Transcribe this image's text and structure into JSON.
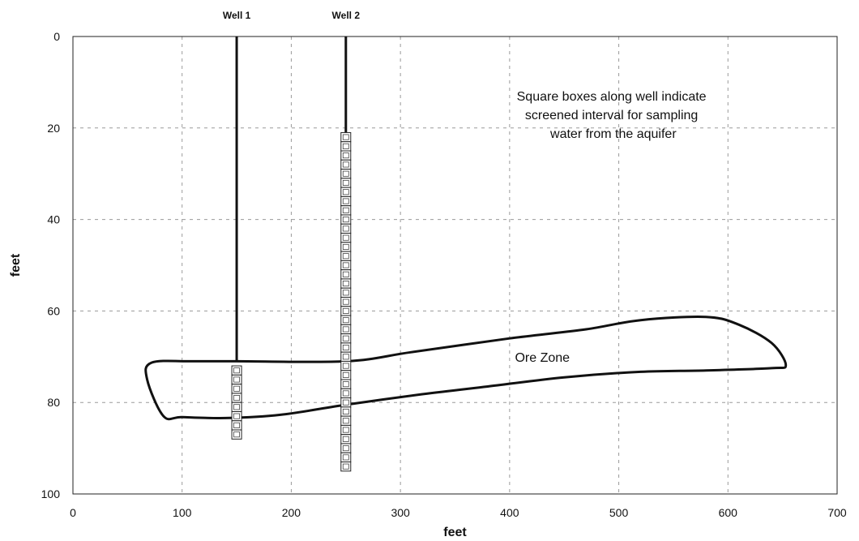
{
  "chart_data": {
    "type": "scatter",
    "xlabel": "feet",
    "ylabel": "feet",
    "xlim": [
      0,
      700
    ],
    "ylim": [
      100,
      0
    ],
    "y_inverted": true,
    "x_ticks": [
      0,
      100,
      200,
      300,
      400,
      500,
      600,
      700
    ],
    "y_ticks": [
      0,
      20,
      40,
      60,
      80,
      100
    ],
    "grid": true,
    "wells": [
      {
        "name": "Well 1",
        "x": 150,
        "depth_top": 0,
        "depth_bottom": 71,
        "screen_top": 72,
        "screen_bottom": 88
      },
      {
        "name": "Well 2",
        "x": 250,
        "depth_top": 0,
        "depth_bottom": 95,
        "screen_top": 21,
        "screen_bottom": 95
      }
    ],
    "ore_zone": {
      "label": "Ore Zone",
      "label_position": [
        430,
        70
      ],
      "outline": [
        [
          150,
          71
        ],
        [
          250,
          71
        ],
        [
          310,
          69
        ],
        [
          400,
          66
        ],
        [
          470,
          64
        ],
        [
          520,
          62
        ],
        [
          580,
          61.3
        ],
        [
          610,
          63
        ],
        [
          640,
          67
        ],
        [
          653,
          71.8
        ],
        [
          640,
          72.5
        ],
        [
          580,
          73
        ],
        [
          520,
          73.3
        ],
        [
          450,
          74.5
        ],
        [
          380,
          76.5
        ],
        [
          320,
          78.2
        ],
        [
          250,
          80.5
        ],
        [
          190,
          82.7
        ],
        [
          140,
          83.4
        ],
        [
          100,
          83.2
        ],
        [
          83,
          83
        ],
        [
          68,
          75
        ],
        [
          72,
          71.3
        ],
        [
          110,
          71
        ]
      ]
    },
    "annotations": [
      {
        "lines": [
          "Square boxes along well indicate",
          "screened interval for sampling",
          "water from the aquifer"
        ],
        "x": 495,
        "y": 14
      }
    ]
  }
}
